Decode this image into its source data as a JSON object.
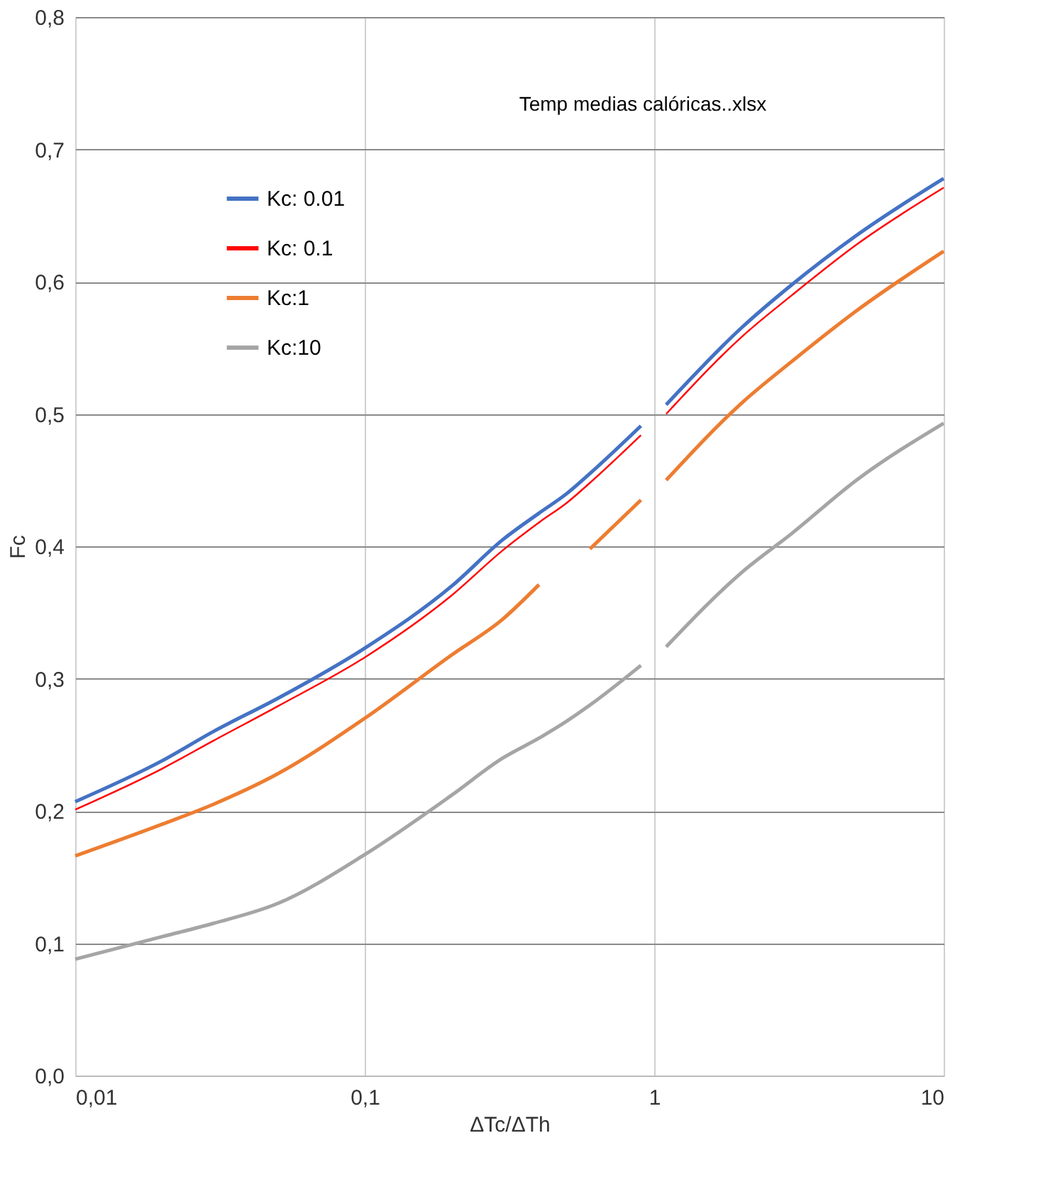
{
  "chart_data": {
    "type": "line",
    "xlabel": "ΔTc/ΔTh",
    "ylabel": "Fc",
    "annotations": [
      "Temp medias calóricas..xlsx"
    ],
    "x": [
      0.01,
      0.02,
      0.03,
      0.05,
      0.1,
      0.2,
      0.3,
      0.4,
      0.5,
      0.6,
      0.9,
      1,
      1.1,
      2,
      3,
      5,
      10
    ],
    "series": [
      {
        "name": "Kc: 0.01",
        "color": "#4472c4",
        "values": [
          0.207,
          0.238,
          0.26,
          0.285,
          0.323,
          0.37,
          0.405,
          0.425,
          0.44,
          0.455,
          0.491,
          null,
          0.507,
          0.565,
          0.598,
          0.635,
          0.678
        ]
      },
      {
        "name": "Kc: 0.1",
        "color": "#ff0000",
        "values": [
          0.201,
          0.232,
          0.253,
          0.279,
          0.316,
          0.363,
          0.397,
          0.418,
          0.433,
          0.448,
          0.484,
          null,
          0.5,
          0.558,
          0.59,
          0.628,
          0.671
        ]
      },
      {
        "name": "Kc:1",
        "color": "#ed7d31",
        "values": [
          0.166,
          0.19,
          0.205,
          0.228,
          0.27,
          0.318,
          0.345,
          0.371,
          null,
          0.398,
          0.435,
          null,
          0.45,
          0.508,
          0.54,
          0.578,
          0.623
        ]
      },
      {
        "name": "Kc:10",
        "color": "#a5a5a5",
        "values": [
          0.088,
          0.105,
          0.115,
          0.13,
          0.167,
          0.212,
          0.24,
          0.255,
          0.268,
          0.28,
          0.31,
          null,
          0.324,
          0.38,
          0.41,
          0.45,
          0.493
        ]
      }
    ],
    "log": "x",
    "xlim": [
      0.01,
      10
    ],
    "xticks": [
      {
        "value": 0.01,
        "label": "0,01"
      },
      {
        "value": 0.1,
        "label": "0,1"
      },
      1,
      10
    ],
    "ylim": [
      0,
      0.8
    ],
    "yticks": [
      {
        "value": 0,
        "label": "0,0"
      },
      {
        "value": 0.1,
        "label": "0,1"
      },
      {
        "value": 0.2,
        "label": "0,2"
      },
      {
        "value": 0.3,
        "label": "0,3"
      },
      {
        "value": 0.4,
        "label": "0,4"
      },
      {
        "value": 0.5,
        "label": "0,5"
      },
      {
        "value": 0.6,
        "label": "0,6"
      },
      {
        "value": 0.7,
        "label": "0,7"
      },
      {
        "value": 0.8,
        "label": "0,8"
      }
    ],
    "grid": true,
    "legend": "top left",
    "line_style": "solid",
    "marker": "none"
  }
}
